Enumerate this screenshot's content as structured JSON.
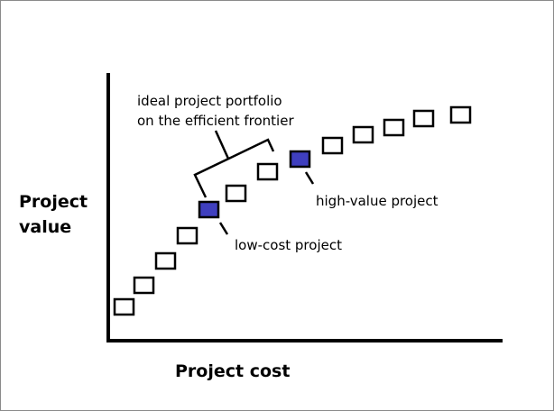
{
  "axes": {
    "y_title_line1": "Project",
    "y_title_line2": "value",
    "x_title": "Project cost"
  },
  "callouts": {
    "portfolio_line1": "ideal project portfolio",
    "portfolio_line2": "on the efficient frontier",
    "high_value": "high-value project",
    "low_cost": "low-cost project"
  },
  "colors": {
    "axis": "#000000",
    "marker_outline": "#000000",
    "marker_empty_fill": "#ffffff",
    "marker_highlight_fill": "#3f3fbf"
  },
  "projects": [
    {
      "rank": 1,
      "highlighted": false
    },
    {
      "rank": 2,
      "highlighted": false
    },
    {
      "rank": 3,
      "highlighted": false
    },
    {
      "rank": 4,
      "highlighted": false
    },
    {
      "rank": 5,
      "highlighted": true,
      "callout": "low_cost"
    },
    {
      "rank": 6,
      "highlighted": false
    },
    {
      "rank": 7,
      "highlighted": false
    },
    {
      "rank": 8,
      "highlighted": true,
      "callout": "high_value"
    },
    {
      "rank": 9,
      "highlighted": false
    },
    {
      "rank": 10,
      "highlighted": false
    },
    {
      "rank": 11,
      "highlighted": false
    },
    {
      "rank": 12,
      "highlighted": false
    },
    {
      "rank": 13,
      "highlighted": false
    }
  ]
}
